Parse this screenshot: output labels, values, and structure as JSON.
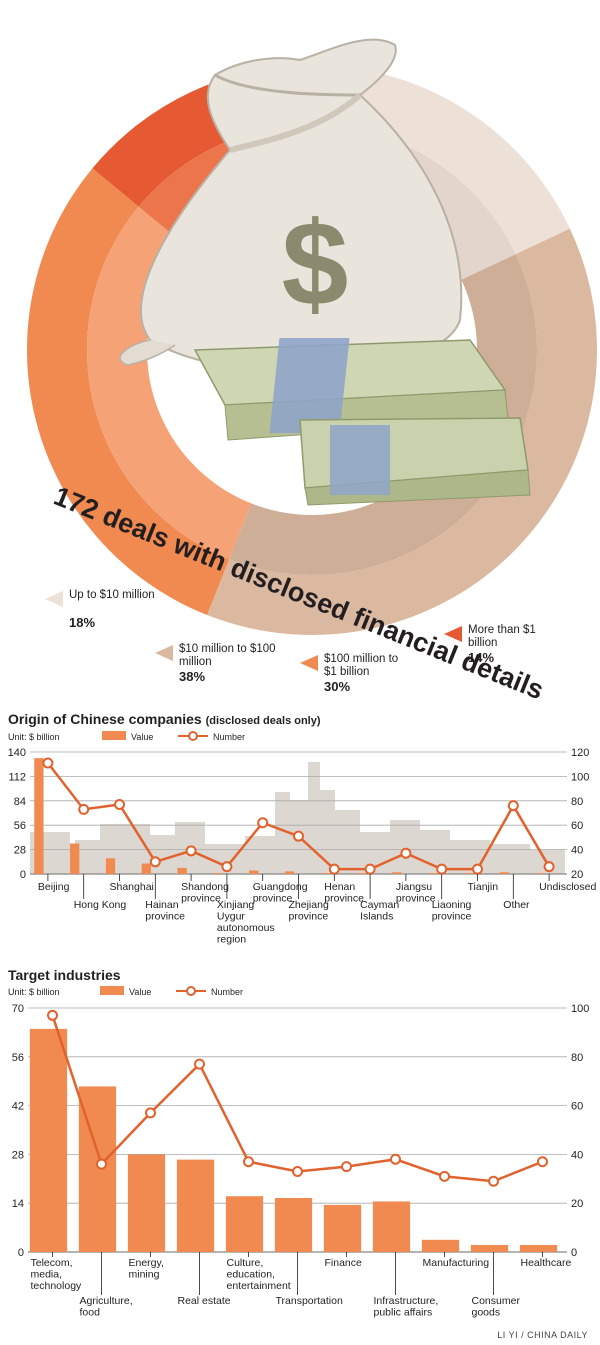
{
  "donut": {
    "title": "172 deals with disclosed financial details",
    "segments": [
      {
        "label": "Up to $10 million",
        "pct_text": "18%",
        "value": 18,
        "color": "#ede0d6"
      },
      {
        "label": "$10 million to $100 million",
        "pct_text": "38%",
        "value": 38,
        "color": "#dbb8a0"
      },
      {
        "label": "$100 million to $1 billion",
        "pct_text": "30%",
        "value": 30,
        "color": "#f08a50"
      },
      {
        "label": "More than $1 billion",
        "pct_text": "14%",
        "value": 14,
        "color": "#e55a33"
      }
    ],
    "inner_colors": [
      "#e3d5cb",
      "#cfae98",
      "#f5a276",
      "#ec754c"
    ]
  },
  "origin": {
    "title": "Origin of Chinese companies",
    "subtitle": "(disclosed deals only)",
    "unit": "Unit: $ billion",
    "legend_value": "Value",
    "legend_number": "Number"
  },
  "industries": {
    "title": "Target industries",
    "unit": "Unit: $ billion",
    "legend_value": "Value",
    "legend_number": "Number"
  },
  "credit": "LI YI / CHINA DAILY",
  "chart_data": [
    {
      "type": "pie",
      "title": "172 deals with disclosed financial details",
      "categories": [
        "Up to $10 million",
        "$10 million to $100 million",
        "$100 million to $1 billion",
        "More than $1 billion"
      ],
      "values": [
        18,
        38,
        30,
        14
      ]
    },
    {
      "type": "bar",
      "title": "Origin of Chinese companies (disclosed deals only)",
      "categories": [
        "Beijing",
        "Hong Kong",
        "Shanghai",
        "Hainan province",
        "Shandong province",
        "Xinjiang Uygur autonomous region",
        "Guangdong province",
        "Zhejiang province",
        "Henan province",
        "Cayman Islands",
        "Jiangsu province",
        "Liaoning province",
        "Tianjin",
        "Other",
        "Undisclosed"
      ],
      "series": [
        {
          "name": "Value",
          "kind": "bar",
          "axis": "left",
          "values": [
            133,
            35,
            18,
            12,
            7,
            1,
            4,
            3,
            1,
            1,
            2,
            1,
            1,
            2,
            1
          ]
        },
        {
          "name": "Number",
          "kind": "line",
          "axis": "right",
          "values": [
            111,
            73,
            77,
            30,
            39,
            26,
            62,
            51,
            24,
            24,
            37,
            24,
            24,
            76,
            26
          ]
        }
      ],
      "ylim": [
        0,
        140
      ],
      "yticks": [
        0,
        28,
        56,
        84,
        112,
        140
      ],
      "y2lim": [
        20,
        120
      ],
      "y2ticks": [
        20,
        40,
        60,
        80,
        100,
        120
      ]
    },
    {
      "type": "bar",
      "title": "Target industries",
      "categories": [
        "Telecom, media, technology",
        "Agriculture, food",
        "Energy, mining",
        "Real estate",
        "Culture, education, entertainment",
        "Transportation",
        "Finance",
        "Infrastructure, public affairs",
        "Manufacturing",
        "Consumer goods",
        "Healthcare"
      ],
      "series": [
        {
          "name": "Value",
          "kind": "bar",
          "axis": "left",
          "values": [
            64,
            47.5,
            28,
            26.5,
            16,
            15.5,
            13.5,
            14.5,
            3.5,
            2,
            2
          ]
        },
        {
          "name": "Number",
          "kind": "line",
          "axis": "right",
          "values": [
            97,
            36,
            57,
            77,
            37,
            33,
            35,
            38,
            31,
            29,
            37
          ]
        }
      ],
      "ylim": [
        0,
        70
      ],
      "yticks": [
        0,
        14,
        28,
        42,
        56,
        70
      ],
      "y2lim": [
        0,
        100
      ],
      "y2ticks": [
        0,
        20,
        40,
        60,
        80,
        100
      ]
    }
  ]
}
